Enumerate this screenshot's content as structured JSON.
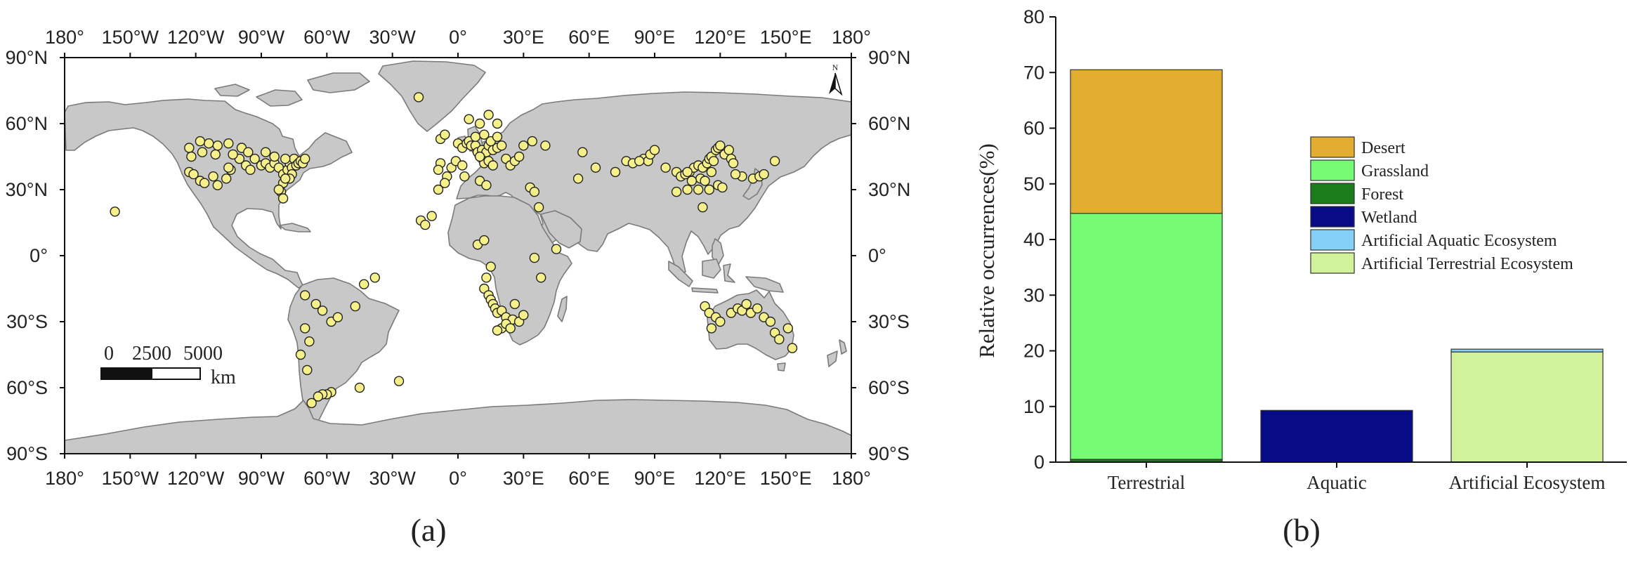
{
  "panel_a": {
    "caption": "(a)",
    "lon_labels": [
      "180°",
      "150°W",
      "120°W",
      "90°W",
      "60°W",
      "30°W",
      "0°",
      "30°E",
      "60°E",
      "90°E",
      "120°E",
      "150°E",
      "180°"
    ],
    "lon_values": [
      -180,
      -150,
      -120,
      -90,
      -60,
      -30,
      0,
      30,
      60,
      90,
      120,
      150,
      180
    ],
    "lat_labels": [
      "90°N",
      "60°N",
      "30°N",
      "0°",
      "30°S",
      "60°S",
      "90°S"
    ],
    "lat_values": [
      90,
      60,
      30,
      0,
      -30,
      -60,
      -90
    ],
    "north_label": "N",
    "scale_bar": {
      "labels": [
        "0",
        "2500",
        "5000"
      ],
      "unit": "km"
    },
    "colors": {
      "ocean": "#ffffff",
      "land": "#c8c8c8",
      "border": "#7a7a7a",
      "point": "#f6f08a",
      "point_edge": "#222222"
    },
    "sites": [
      [
        -157,
        20
      ],
      [
        -123,
        38
      ],
      [
        -121,
        37
      ],
      [
        -118,
        34
      ],
      [
        -116,
        33
      ],
      [
        -112,
        36
      ],
      [
        -110,
        32
      ],
      [
        -106,
        35
      ],
      [
        -104,
        39
      ],
      [
        -105,
        40
      ],
      [
        -100,
        44
      ],
      [
        -97,
        41
      ],
      [
        -95,
        39
      ],
      [
        -93,
        44
      ],
      [
        -90,
        41
      ],
      [
        -88,
        42
      ],
      [
        -86,
        40
      ],
      [
        -84,
        42
      ],
      [
        -82,
        40
      ],
      [
        -80,
        37
      ],
      [
        -78,
        39
      ],
      [
        -77,
        42
      ],
      [
        -76,
        40
      ],
      [
        -75,
        44
      ],
      [
        -74,
        41
      ],
      [
        -73,
        42
      ],
      [
        -72,
        43
      ],
      [
        -71,
        42
      ],
      [
        -70,
        44
      ],
      [
        -80,
        33
      ],
      [
        -81,
        29
      ],
      [
        -82,
        30
      ],
      [
        -114,
        51
      ],
      [
        -118,
        52
      ],
      [
        -110,
        50
      ],
      [
        -105,
        51
      ],
      [
        -99,
        49
      ],
      [
        -123,
        49
      ],
      [
        -122,
        45
      ],
      [
        -117,
        47
      ],
      [
        -111,
        46
      ],
      [
        -103,
        46
      ],
      [
        -96,
        47
      ],
      [
        -88,
        47
      ],
      [
        -84,
        45
      ],
      [
        -79,
        44
      ],
      [
        -76,
        37
      ],
      [
        -77,
        35
      ],
      [
        -79,
        35
      ],
      [
        -80,
        26
      ],
      [
        -70,
        -18
      ],
      [
        -65,
        -22
      ],
      [
        -62,
        -25
      ],
      [
        -58,
        -30
      ],
      [
        -55,
        -28
      ],
      [
        -47,
        -23
      ],
      [
        -70,
        -33
      ],
      [
        -68,
        -39
      ],
      [
        -72,
        -45
      ],
      [
        -69,
        -52
      ],
      [
        -43,
        -13
      ],
      [
        -38,
        -10
      ],
      [
        -58,
        -62
      ],
      [
        -60,
        -63
      ],
      [
        -62,
        -63
      ],
      [
        -64,
        -64
      ],
      [
        -67,
        -67
      ],
      [
        -45,
        -60
      ],
      [
        -27,
        -57
      ],
      [
        -5,
        36
      ],
      [
        -3,
        40
      ],
      [
        -1,
        43
      ],
      [
        2,
        41
      ],
      [
        -8,
        42
      ],
      [
        -9,
        39
      ],
      [
        0,
        51
      ],
      [
        2,
        49
      ],
      [
        4,
        51
      ],
      [
        5,
        52
      ],
      [
        6,
        50
      ],
      [
        8,
        50
      ],
      [
        9,
        47
      ],
      [
        11,
        48
      ],
      [
        13,
        47
      ],
      [
        14,
        50
      ],
      [
        16,
        48
      ],
      [
        18,
        49
      ],
      [
        20,
        50
      ],
      [
        12,
        42
      ],
      [
        14,
        43
      ],
      [
        16,
        41
      ],
      [
        10,
        45
      ],
      [
        8,
        54
      ],
      [
        12,
        55
      ],
      [
        15,
        52
      ],
      [
        18,
        54
      ],
      [
        10,
        60
      ],
      [
        14,
        64
      ],
      [
        18,
        60
      ],
      [
        22,
        44
      ],
      [
        24,
        41
      ],
      [
        26,
        43
      ],
      [
        28,
        45
      ],
      [
        30,
        50
      ],
      [
        34,
        52
      ],
      [
        40,
        50
      ],
      [
        5,
        62
      ],
      [
        -18,
        72
      ],
      [
        -8,
        53
      ],
      [
        -6,
        55
      ],
      [
        -17,
        16
      ],
      [
        -15,
        14
      ],
      [
        -12,
        18
      ],
      [
        -6,
        33
      ],
      [
        -9,
        30
      ],
      [
        3,
        36
      ],
      [
        10,
        34
      ],
      [
        13,
        32
      ],
      [
        33,
        31
      ],
      [
        35,
        29
      ],
      [
        37,
        22
      ],
      [
        45,
        3
      ],
      [
        35,
        -1
      ],
      [
        38,
        -10
      ],
      [
        15,
        -5
      ],
      [
        13,
        -10
      ],
      [
        12,
        -15
      ],
      [
        14,
        -18
      ],
      [
        15,
        -20
      ],
      [
        16,
        -22
      ],
      [
        17,
        -24
      ],
      [
        18,
        -26
      ],
      [
        20,
        -25
      ],
      [
        22,
        -28
      ],
      [
        25,
        -29
      ],
      [
        28,
        -30
      ],
      [
        30,
        -27
      ],
      [
        26,
        -22
      ],
      [
        20,
        -33
      ],
      [
        18,
        -34
      ],
      [
        22,
        -31
      ],
      [
        24,
        -33
      ],
      [
        9,
        5
      ],
      [
        12,
        7
      ],
      [
        57,
        47
      ],
      [
        63,
        40
      ],
      [
        72,
        38
      ],
      [
        77,
        43
      ],
      [
        80,
        42
      ],
      [
        85,
        44
      ],
      [
        87,
        43
      ],
      [
        88,
        46
      ],
      [
        90,
        48
      ],
      [
        95,
        40
      ],
      [
        100,
        38
      ],
      [
        102,
        36
      ],
      [
        104,
        37
      ],
      [
        106,
        38
      ],
      [
        108,
        40
      ],
      [
        110,
        41
      ],
      [
        112,
        40
      ],
      [
        114,
        42
      ],
      [
        115,
        44
      ],
      [
        116,
        45
      ],
      [
        117,
        43
      ],
      [
        118,
        48
      ],
      [
        119,
        49
      ],
      [
        120,
        50
      ],
      [
        122,
        46
      ],
      [
        124,
        48
      ],
      [
        125,
        44
      ],
      [
        126,
        42
      ],
      [
        111,
        35
      ],
      [
        113,
        34
      ],
      [
        116,
        38
      ],
      [
        119,
        32
      ],
      [
        121,
        31
      ],
      [
        115,
        30
      ],
      [
        110,
        30
      ],
      [
        112,
        22
      ],
      [
        105,
        38
      ],
      [
        100,
        29
      ],
      [
        105,
        30
      ],
      [
        107,
        34
      ],
      [
        130,
        36
      ],
      [
        135,
        35
      ],
      [
        138,
        36
      ],
      [
        140,
        37
      ],
      [
        145,
        43
      ],
      [
        127,
        37
      ],
      [
        83,
        43
      ],
      [
        55,
        35
      ],
      [
        113,
        -23
      ],
      [
        115,
        -26
      ],
      [
        118,
        -28
      ],
      [
        120,
        -30
      ],
      [
        125,
        -26
      ],
      [
        128,
        -24
      ],
      [
        130,
        -25
      ],
      [
        132,
        -22
      ],
      [
        134,
        -26
      ],
      [
        137,
        -24
      ],
      [
        140,
        -28
      ],
      [
        143,
        -30
      ],
      [
        145,
        -35
      ],
      [
        147,
        -38
      ],
      [
        116,
        -33
      ],
      [
        151,
        -33
      ],
      [
        153,
        -42
      ]
    ]
  },
  "panel_b": {
    "caption": "(b)",
    "chart_data": {
      "type": "bar",
      "stacked": true,
      "categories": [
        "Terrestrial",
        "Aquatic",
        "Artificial Ecosystem"
      ],
      "ylabel": "Relative occurrences(%)",
      "xlabel": "",
      "ylim": [
        0,
        80
      ],
      "yticks": [
        0,
        10,
        20,
        30,
        40,
        50,
        60,
        70,
        80
      ],
      "legend_position": "right",
      "series": [
        {
          "name": "Desert",
          "color": "#e3ae2f",
          "values": [
            25.8,
            0,
            0
          ]
        },
        {
          "name": "Grassland",
          "color": "#76fb75",
          "values": [
            44.2,
            0,
            0
          ]
        },
        {
          "name": "Forest",
          "color": "#1a7d1a",
          "values": [
            0.5,
            0,
            0
          ]
        },
        {
          "name": "Wetland",
          "color": "#070b85",
          "values": [
            0,
            9.3,
            0
          ]
        },
        {
          "name": "Artificial Aquatic Ecosystem",
          "color": "#85d0f7",
          "values": [
            0,
            0,
            0.5
          ]
        },
        {
          "name": "Artificial Terrestrial Ecosystem",
          "color": "#d2f19b",
          "values": [
            0,
            0,
            19.8
          ]
        }
      ],
      "stack_order": [
        "Forest",
        "Grassland",
        "Desert",
        "Wetland",
        "Artificial Terrestrial Ecosystem",
        "Artificial Aquatic Ecosystem"
      ]
    }
  }
}
